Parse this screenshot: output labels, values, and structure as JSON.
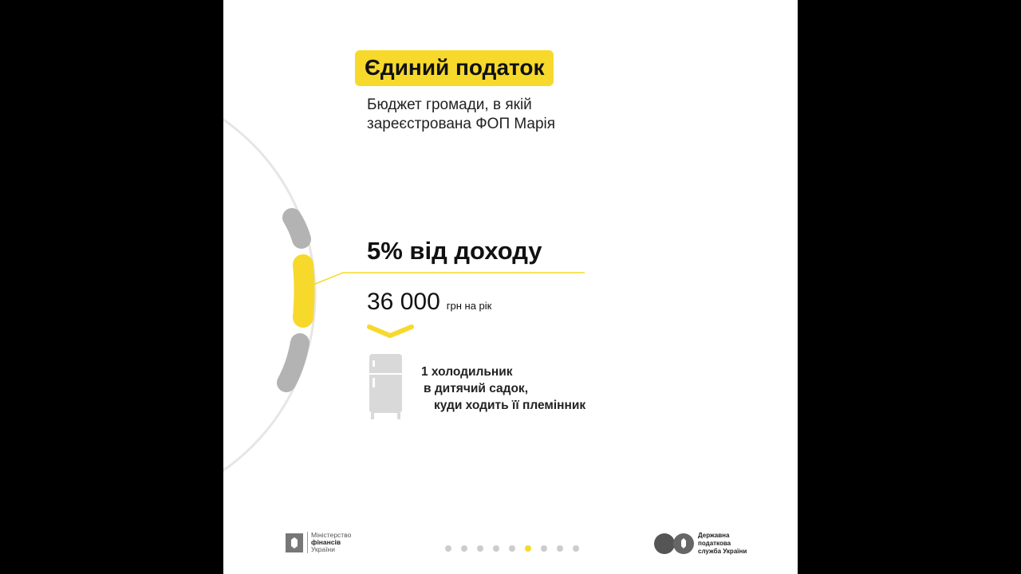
{
  "title": "Єдиний податок",
  "subtitle": [
    "Бюджет громади, в якій",
    "зареєстрована ФОП Марія"
  ],
  "rate": "5% від доходу",
  "amount": {
    "value": "36 000",
    "unit": "грн на рік"
  },
  "item": [
    "1 холодильник",
    "в дитячий садок,",
    "куди ходить її племінник"
  ],
  "item_icon": "fridge-icon",
  "pagination": {
    "total": 9,
    "active": 6
  },
  "footer": {
    "ministry": [
      "Міністерство",
      "фінансів",
      "України"
    ],
    "tax_service": [
      "Державна",
      "податкова",
      "служба України"
    ]
  },
  "colors": {
    "accent": "#f7d92c",
    "gray": "#b3b3b3",
    "arc": "#e6e6e6"
  }
}
